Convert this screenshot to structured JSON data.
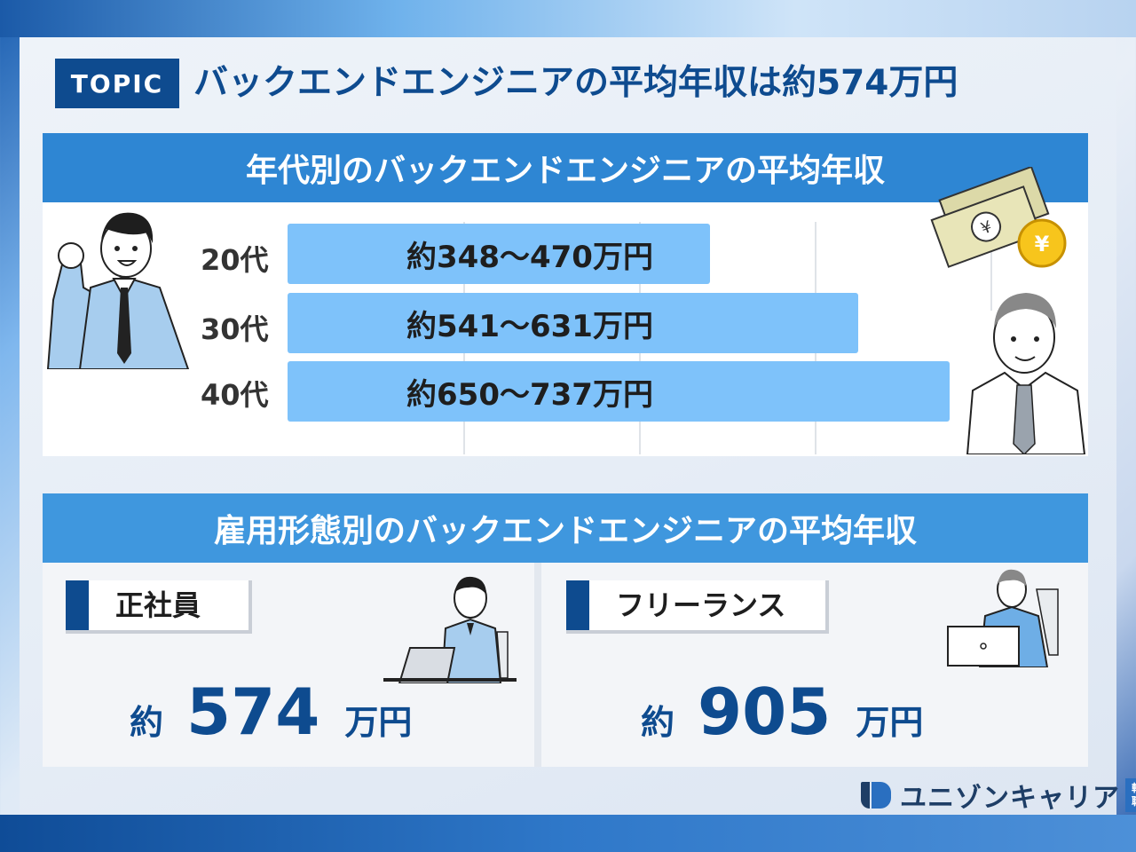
{
  "header": {
    "badge": "TOPIC",
    "title": "バックエンドエンジニアの平均年収は約574万円"
  },
  "age_section": {
    "title": "年代別のバックエンドエンジニアの平均年収",
    "rows": [
      {
        "age": "20代",
        "range": "約348〜470万円",
        "length": 0.6
      },
      {
        "age": "30代",
        "range": "約541〜631万円",
        "length": 0.81
      },
      {
        "age": "40代",
        "range": "約650〜737万円",
        "length": 0.94
      }
    ]
  },
  "employment_section": {
    "title": "雇用形態別のバックエンドエンジニアの平均年収",
    "fulltime": {
      "label": "正社員",
      "prefix": "約",
      "value": "574",
      "unit": "万円"
    },
    "freelance": {
      "label": "フリーランス",
      "prefix": "約",
      "value": "905",
      "unit": "万円"
    }
  },
  "logo": {
    "name": "ユニゾンキャリア",
    "tag_top": "転",
    "tag_bottom": "職"
  },
  "colors": {
    "brand_navy": "#0e4b8f",
    "header_blue": "#2e86d3",
    "bar_blue": "#7ec2fa"
  },
  "icons": {
    "man_left": "businessman-fist-pump-illustration",
    "money": "yen-banknotes-and-coin-illustration",
    "man_right": "older-man-shirt-tie-illustration",
    "laptop_suit": "man-in-suit-at-laptop-illustration",
    "laptop_casual": "man-in-sweater-at-laptop-illustration"
  }
}
